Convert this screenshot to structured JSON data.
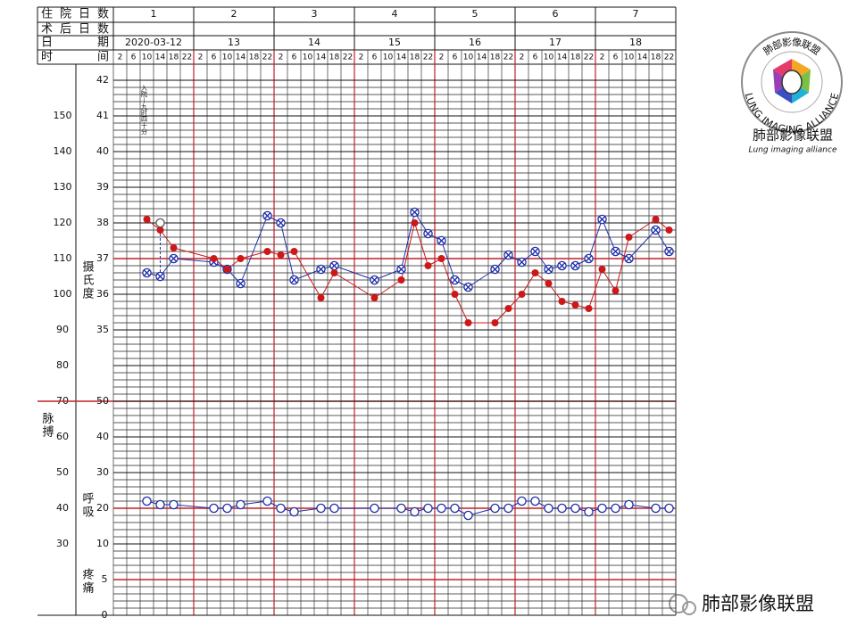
{
  "header": {
    "labels": [
      "住院日数",
      "术后日数",
      "日期",
      "时间"
    ],
    "hospital_days": [
      1,
      2,
      3,
      4,
      5,
      6,
      7
    ],
    "dates": [
      "2020-03-12",
      "13",
      "14",
      "15",
      "16",
      "17",
      "18"
    ]
  },
  "chart_data": {
    "type": "line",
    "categories": [
      2,
      6,
      10,
      14,
      18,
      22,
      2,
      6,
      10,
      14,
      18,
      22,
      2,
      6,
      10,
      14,
      18,
      22,
      2,
      6,
      10,
      14,
      18,
      22,
      2,
      6,
      10,
      14,
      18,
      22,
      2,
      6,
      10,
      14,
      18,
      22,
      2,
      6,
      10,
      14,
      18,
      22
    ],
    "annotation": "入院—九时四十分",
    "axes": {
      "pulse": {
        "label": "脉搏",
        "ylim": [
          10,
          162.5
        ],
        "yticks": [
          150,
          140,
          130,
          120,
          110,
          100,
          90,
          80,
          70,
          60,
          50,
          40,
          30
        ],
        "highlight": 70
      },
      "temp": {
        "label": "摄氏度",
        "ylim": [
          27,
          42.25
        ],
        "yticks": [
          42,
          41,
          40,
          39,
          38,
          37,
          36,
          35
        ],
        "highlight": 37
      },
      "breath": {
        "label": "呼吸",
        "ylim": [
          -10,
          142.5
        ],
        "yticks": [
          50,
          40,
          30,
          20,
          10
        ],
        "highlight": 20
      },
      "pain": {
        "label": "疼痛",
        "ylim": [
          0,
          76.25
        ],
        "yticks": [
          5,
          0
        ],
        "highlight": 5
      }
    },
    "highlight_color": "#c0202a",
    "series": [
      {
        "axis": "temp",
        "marker": "cross",
        "color": "#1f2fa8",
        "values": [
          null,
          null,
          36.6,
          36.5,
          37.0,
          null,
          null,
          36.9,
          36.7,
          36.3,
          null,
          38.2,
          38.0,
          36.4,
          null,
          36.7,
          36.8,
          null,
          null,
          36.4,
          null,
          36.7,
          38.3,
          37.7,
          37.5,
          36.4,
          36.2,
          null,
          36.7,
          37.1,
          36.9,
          37.2,
          36.7,
          36.8,
          36.8,
          37.0,
          38.1,
          37.2,
          37.0,
          null,
          37.8,
          37.2
        ]
      },
      {
        "axis": "pulse",
        "marker": "dot",
        "color": "#cc1818",
        "values": [
          null,
          null,
          121,
          118,
          113,
          null,
          null,
          110,
          107,
          110,
          null,
          112,
          111,
          112,
          null,
          99,
          106,
          null,
          null,
          99,
          null,
          104,
          120,
          108,
          110,
          100,
          92,
          null,
          92,
          96,
          100,
          106,
          103,
          98,
          97,
          96,
          107,
          101,
          116,
          null,
          121,
          118
        ]
      },
      {
        "axis": "breath",
        "marker": "ring",
        "color": "#1f2fa8",
        "values": [
          null,
          null,
          22,
          21,
          21,
          null,
          null,
          20,
          20,
          21,
          null,
          22,
          20,
          19,
          null,
          20,
          20,
          null,
          null,
          20,
          null,
          20,
          19,
          20,
          20,
          20,
          18,
          null,
          20,
          20,
          22,
          22,
          20,
          20,
          20,
          19,
          20,
          20,
          21,
          null,
          20,
          20
        ]
      },
      {
        "axis": "temp",
        "marker": "open",
        "color": "#1f2fa8",
        "dashed": true,
        "values": [
          null,
          null,
          null,
          38.0,
          null,
          null,
          null,
          null,
          null,
          null,
          null,
          null,
          null,
          null,
          null,
          null,
          null,
          null,
          null,
          null,
          null,
          null,
          null,
          null,
          null,
          null,
          null,
          null,
          null,
          null,
          null,
          null,
          null,
          null,
          null,
          null,
          null,
          null,
          null,
          null,
          null,
          null
        ]
      }
    ]
  },
  "logo": {
    "name": "肺部影像联盟",
    "subtitle": "Lung imaging alliance",
    "ring_en": "LUNG IMAGING ALLIANCE",
    "ring_cn": "肺部影像联盟"
  },
  "watermark": "肺部影像联盟"
}
